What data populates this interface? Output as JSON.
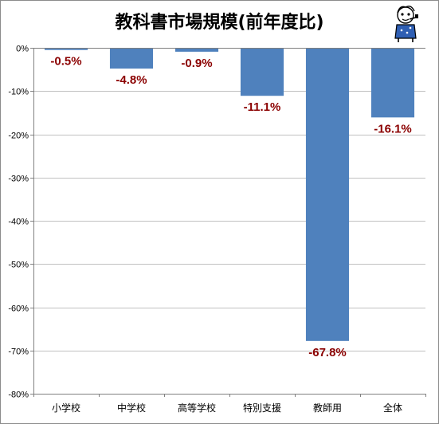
{
  "chart_data": {
    "type": "bar",
    "title": "教科書市場規模(前年度比)",
    "categories": [
      "小学校",
      "中学校",
      "高等学校",
      "特別支援",
      "教師用",
      "全体"
    ],
    "values": [
      -0.5,
      -4.8,
      -0.9,
      -11.1,
      -67.8,
      -16.1
    ],
    "data_labels": [
      "-0.5%",
      "-4.8%",
      "-0.9%",
      "-11.1%",
      "-67.8%",
      "-16.1%"
    ],
    "ylim": [
      -80,
      0
    ],
    "yticks": [
      0,
      -10,
      -20,
      -30,
      -40,
      -50,
      -60,
      -70,
      -80
    ],
    "ytick_labels": [
      "0%",
      "-10%",
      "-20%",
      "-30%",
      "-40%",
      "-50%",
      "-60%",
      "-70%",
      "-80%"
    ],
    "grid": true,
    "legend": "none",
    "bar_color": "#4f81bd",
    "label_color": "#8b0000",
    "grid_color": "#c0c0c0"
  },
  "mascot": {
    "icon": "mascot-cartoon-icon"
  }
}
